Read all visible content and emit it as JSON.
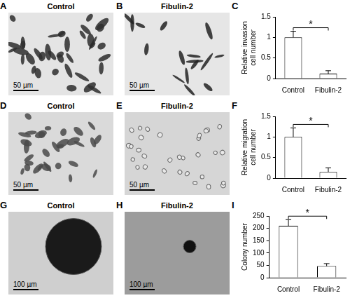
{
  "images": [
    {
      "panel": "A",
      "title": "Control",
      "scale_bar": "50 µm"
    },
    {
      "panel": "B",
      "title": "Fibulin-2",
      "scale_bar": "50 µm"
    },
    {
      "panel": "D",
      "title": "Control",
      "scale_bar": "50 µm"
    },
    {
      "panel": "E",
      "title": "Fibulin-2",
      "scale_bar": "50 µm"
    },
    {
      "panel": "G",
      "title": "Control",
      "scale_bar": "100 µm"
    },
    {
      "panel": "H",
      "title": "Fibulin-2",
      "scale_bar": "100 µm"
    }
  ],
  "chart_data": [
    {
      "panel": "C",
      "type": "bar",
      "categories": [
        "Control",
        "Fibulin-2"
      ],
      "values": [
        1,
        0.12
      ],
      "errors": [
        0.15,
        0.07
      ],
      "color": "#ffffff",
      "y_label": "Relative invasion cell number",
      "ylim": [
        0,
        1.5
      ],
      "yticks": [
        0,
        0.5,
        1,
        1.5
      ],
      "grid": false,
      "annotations": [
        {
          "text": "*",
          "between": [
            "Control",
            "Fibulin-2"
          ]
        }
      ]
    },
    {
      "panel": "F",
      "type": "bar",
      "categories": [
        "Control",
        "Fibulin-2"
      ],
      "values": [
        1,
        0.15
      ],
      "errors": [
        0.22,
        0.1
      ],
      "color": "#ffffff",
      "y_label": "Relative migration cell number",
      "ylim": [
        0,
        1.5
      ],
      "yticks": [
        0,
        0.5,
        1,
        1.5
      ],
      "grid": false,
      "annotations": [
        {
          "text": "*",
          "between": [
            "Control",
            "Fibulin-2"
          ]
        }
      ]
    },
    {
      "panel": "I",
      "type": "bar",
      "categories": [
        "Control",
        "Fibulin-2"
      ],
      "values": [
        210,
        47
      ],
      "errors": [
        25,
        10
      ],
      "color": "#ffffff",
      "y_label": "Colony number",
      "ylim": [
        0,
        250
      ],
      "yticks": [
        0,
        50,
        100,
        150,
        200,
        250
      ],
      "grid": false,
      "annotations": [
        {
          "text": "*",
          "between": [
            "Control",
            "Fibulin-2"
          ]
        }
      ]
    }
  ]
}
